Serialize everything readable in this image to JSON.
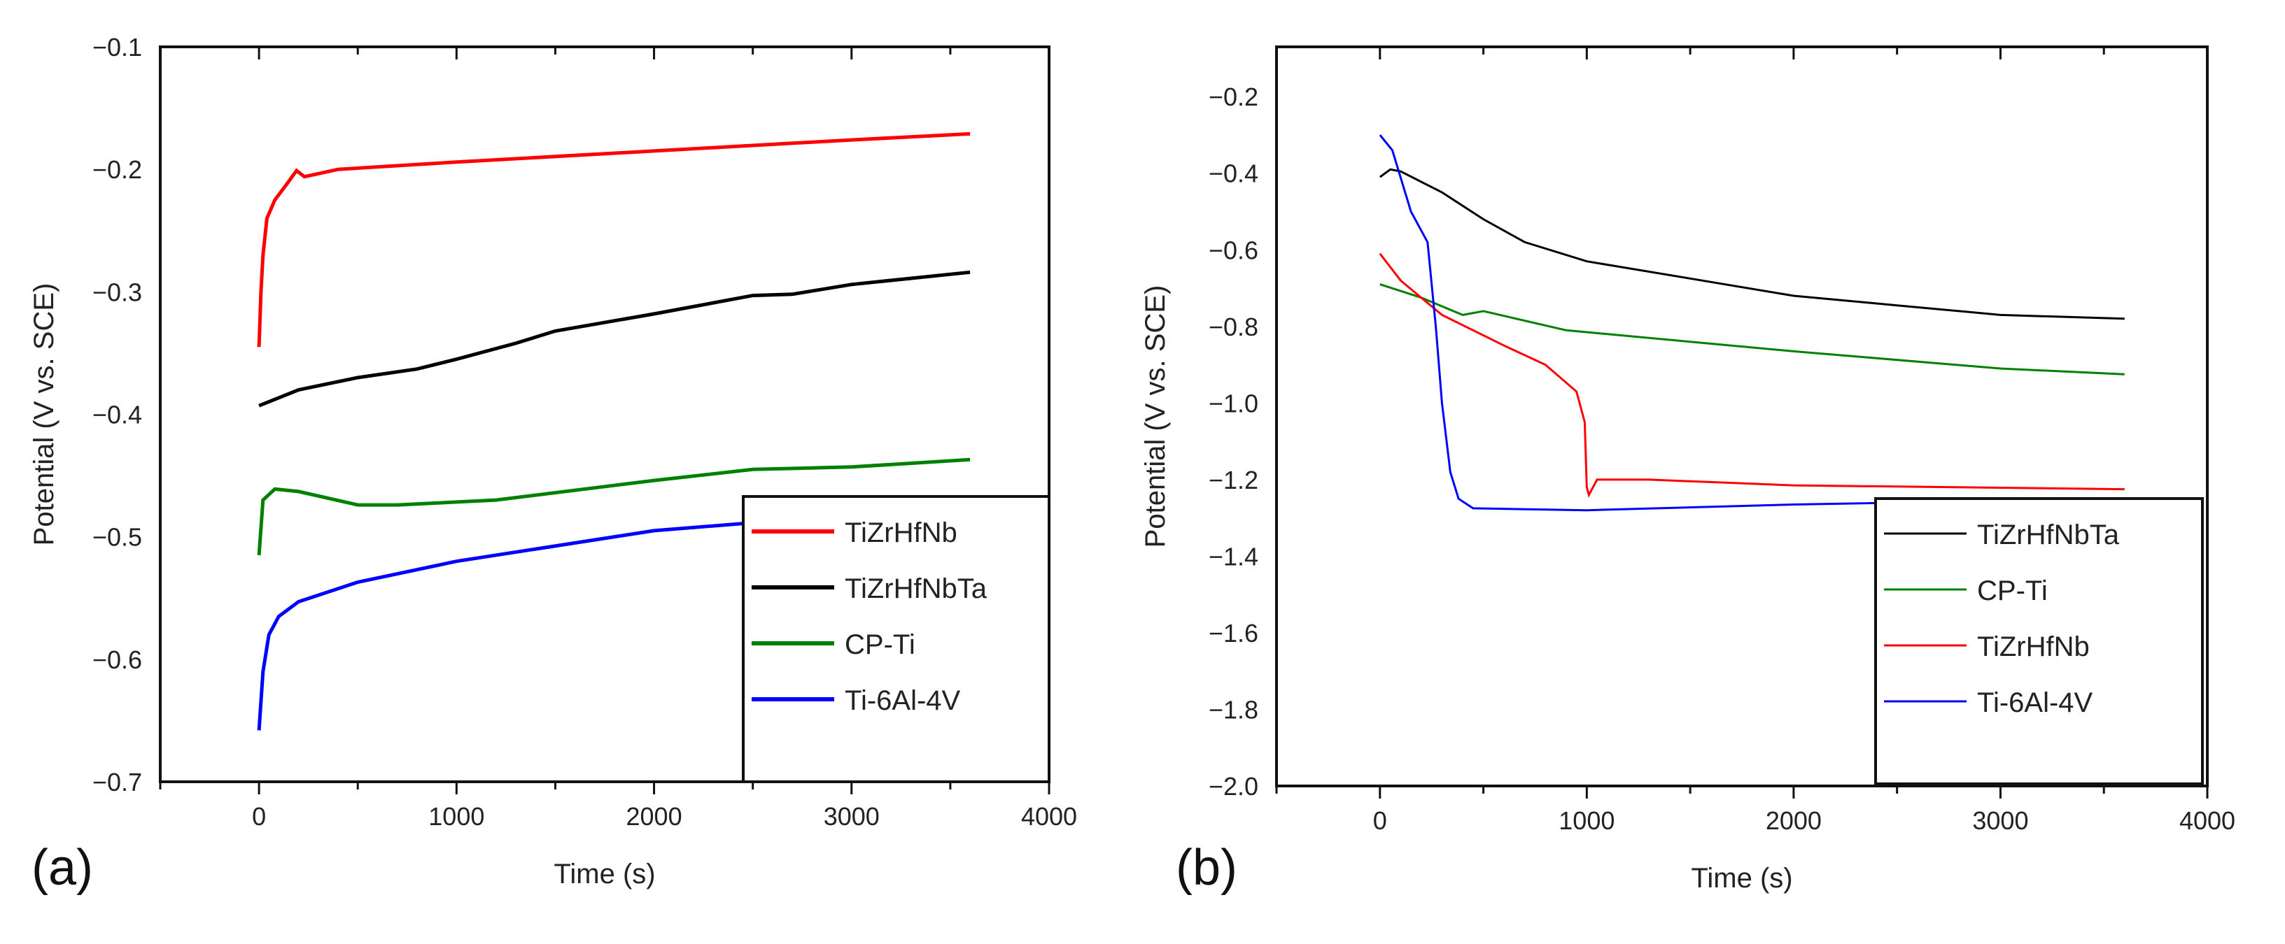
{
  "chart_data": [
    {
      "type": "line",
      "panel_label": "(a)",
      "xlabel": "Time (s)",
      "ylabel": "Potential (V vs. SCE)",
      "xlim": [
        -500,
        4000
      ],
      "ylim": [
        -0.7,
        -0.1
      ],
      "xticks": [
        0,
        1000,
        2000,
        3000,
        4000
      ],
      "yticks": [
        -0.7,
        -0.6,
        -0.5,
        -0.4,
        -0.3,
        -0.2,
        -0.1
      ],
      "ytick_labels": [
        "−0.7",
        "−0.6",
        "−0.5",
        "−0.4",
        "−0.3",
        "−0.2",
        "−0.1"
      ],
      "grid": false,
      "legend_position": "bottom-right",
      "series": [
        {
          "name": "TiZrHfNb",
          "color": "#ff0000",
          "points": [
            [
              0,
              -0.345
            ],
            [
              10,
              -0.3
            ],
            [
              20,
              -0.27
            ],
            [
              40,
              -0.24
            ],
            [
              80,
              -0.225
            ],
            [
              150,
              -0.21
            ],
            [
              190,
              -0.201
            ],
            [
              230,
              -0.206
            ],
            [
              400,
              -0.2
            ],
            [
              1000,
              -0.194
            ],
            [
              2000,
              -0.185
            ],
            [
              3000,
              -0.176
            ],
            [
              3600,
              -0.171
            ]
          ]
        },
        {
          "name": "TiZrHfNbTa",
          "color": "#000000",
          "points": [
            [
              0,
              -0.393
            ],
            [
              200,
              -0.38
            ],
            [
              500,
              -0.37
            ],
            [
              800,
              -0.363
            ],
            [
              1000,
              -0.355
            ],
            [
              1300,
              -0.342
            ],
            [
              1500,
              -0.332
            ],
            [
              2000,
              -0.318
            ],
            [
              2500,
              -0.303
            ],
            [
              2700,
              -0.302
            ],
            [
              3000,
              -0.294
            ],
            [
              3600,
              -0.284
            ]
          ]
        },
        {
          "name": "CP-Ti",
          "color": "#008000",
          "points": [
            [
              0,
              -0.515
            ],
            [
              20,
              -0.47
            ],
            [
              80,
              -0.461
            ],
            [
              200,
              -0.463
            ],
            [
              500,
              -0.474
            ],
            [
              700,
              -0.474
            ],
            [
              1200,
              -0.47
            ],
            [
              2000,
              -0.454
            ],
            [
              2500,
              -0.445
            ],
            [
              3000,
              -0.443
            ],
            [
              3600,
              -0.437
            ]
          ]
        },
        {
          "name": "Ti-6Al-4V",
          "color": "#0000ff",
          "points": [
            [
              0,
              -0.658
            ],
            [
              20,
              -0.61
            ],
            [
              50,
              -0.58
            ],
            [
              100,
              -0.565
            ],
            [
              200,
              -0.553
            ],
            [
              500,
              -0.537
            ],
            [
              1000,
              -0.52
            ],
            [
              2000,
              -0.495
            ],
            [
              3000,
              -0.482
            ],
            [
              3600,
              -0.472
            ]
          ]
        }
      ]
    },
    {
      "type": "line",
      "panel_label": "(b)",
      "xlabel": "Time (s)",
      "ylabel": "Potential (V vs. SCE)",
      "xlim": [
        -500,
        4000
      ],
      "ylim": [
        -2.0,
        -0.07
      ],
      "xticks": [
        0,
        1000,
        2000,
        3000,
        4000
      ],
      "yticks": [
        -2.0,
        -1.8,
        -1.6,
        -1.4,
        -1.2,
        -1.0,
        -0.8,
        -0.6,
        -0.4,
        -0.2
      ],
      "ytick_labels": [
        "−2.0",
        "−1.8",
        "−1.6",
        "−1.4",
        "−1.2",
        "−1.0",
        "−0.8",
        "−0.6",
        "−0.4",
        "−0.2"
      ],
      "grid": false,
      "legend_position": "bottom-right",
      "series": [
        {
          "name": "TiZrHfNbTa",
          "color": "#000000",
          "points": [
            [
              0,
              -0.41
            ],
            [
              50,
              -0.39
            ],
            [
              100,
              -0.395
            ],
            [
              300,
              -0.45
            ],
            [
              500,
              -0.52
            ],
            [
              700,
              -0.58
            ],
            [
              1000,
              -0.63
            ],
            [
              1500,
              -0.675
            ],
            [
              2000,
              -0.72
            ],
            [
              2500,
              -0.745
            ],
            [
              3000,
              -0.77
            ],
            [
              3600,
              -0.78
            ]
          ]
        },
        {
          "name": "CP-Ti",
          "color": "#008000",
          "points": [
            [
              0,
              -0.69
            ],
            [
              200,
              -0.725
            ],
            [
              400,
              -0.77
            ],
            [
              500,
              -0.76
            ],
            [
              900,
              -0.81
            ],
            [
              1500,
              -0.84
            ],
            [
              2000,
              -0.865
            ],
            [
              3000,
              -0.91
            ],
            [
              3600,
              -0.925
            ]
          ]
        },
        {
          "name": "TiZrHfNb",
          "color": "#ff0000",
          "points": [
            [
              0,
              -0.61
            ],
            [
              100,
              -0.68
            ],
            [
              300,
              -0.77
            ],
            [
              600,
              -0.85
            ],
            [
              800,
              -0.9
            ],
            [
              950,
              -0.97
            ],
            [
              990,
              -1.05
            ],
            [
              1000,
              -1.22
            ],
            [
              1010,
              -1.24
            ],
            [
              1050,
              -1.2
            ],
            [
              1300,
              -1.2
            ],
            [
              2000,
              -1.215
            ],
            [
              3600,
              -1.225
            ]
          ]
        },
        {
          "name": "Ti-6Al-4V",
          "color": "#0000ff",
          "points": [
            [
              0,
              -0.3
            ],
            [
              60,
              -0.34
            ],
            [
              150,
              -0.5
            ],
            [
              230,
              -0.58
            ],
            [
              270,
              -0.8
            ],
            [
              300,
              -1.0
            ],
            [
              340,
              -1.18
            ],
            [
              380,
              -1.25
            ],
            [
              450,
              -1.275
            ],
            [
              1000,
              -1.28
            ],
            [
              2000,
              -1.265
            ],
            [
              3600,
              -1.25
            ]
          ]
        }
      ]
    }
  ]
}
